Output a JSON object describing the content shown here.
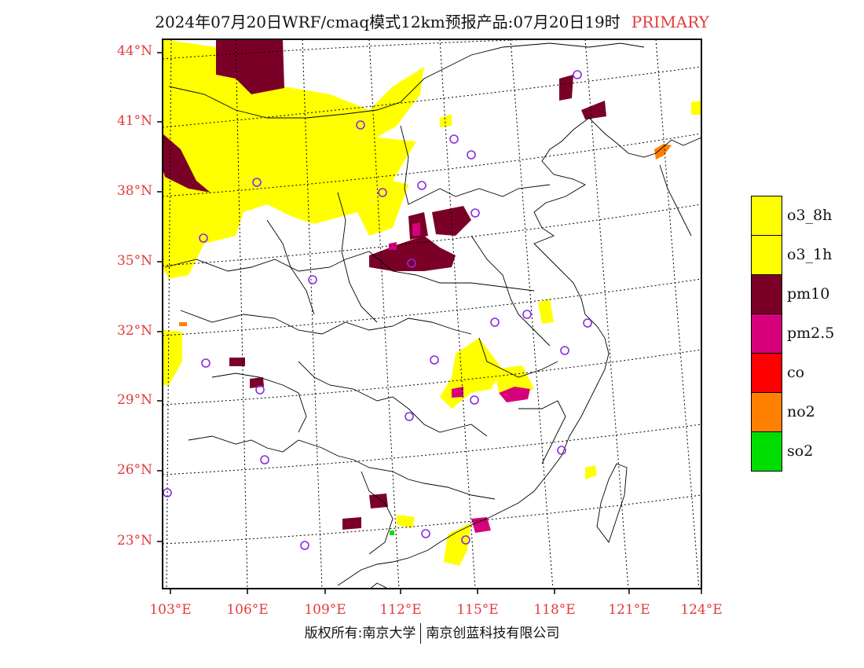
{
  "title": {
    "main": "2024年07月20日WRF/cmaq模式12km预报产品:07月20日19时",
    "tag": "PRIMARY"
  },
  "latitude_labels": [
    "44°N",
    "41°N",
    "38°N",
    "35°N",
    "32°N",
    "29°N",
    "26°N",
    "23°N"
  ],
  "longitude_labels": [
    "103°E",
    "106°E",
    "109°E",
    "112°E",
    "115°E",
    "118°E",
    "121°E",
    "124°E"
  ],
  "legend": [
    {
      "label": "o3_8h",
      "color": "#ffff00"
    },
    {
      "label": "o3_1h",
      "color": "#ffff00"
    },
    {
      "label": "pm10",
      "color": "#7a0028"
    },
    {
      "label": "pm2.5",
      "color": "#d6007a"
    },
    {
      "label": "co",
      "color": "#ff0000"
    },
    {
      "label": "no2",
      "color": "#ff7f00"
    },
    {
      "label": "so2",
      "color": "#00dd00"
    }
  ],
  "footer": {
    "left": "版权所有:南京大学",
    "right": "南京创蓝科技有限公司"
  },
  "colors": {
    "label_red": "#e23b3b",
    "station_marker": "#8a2be2"
  }
}
